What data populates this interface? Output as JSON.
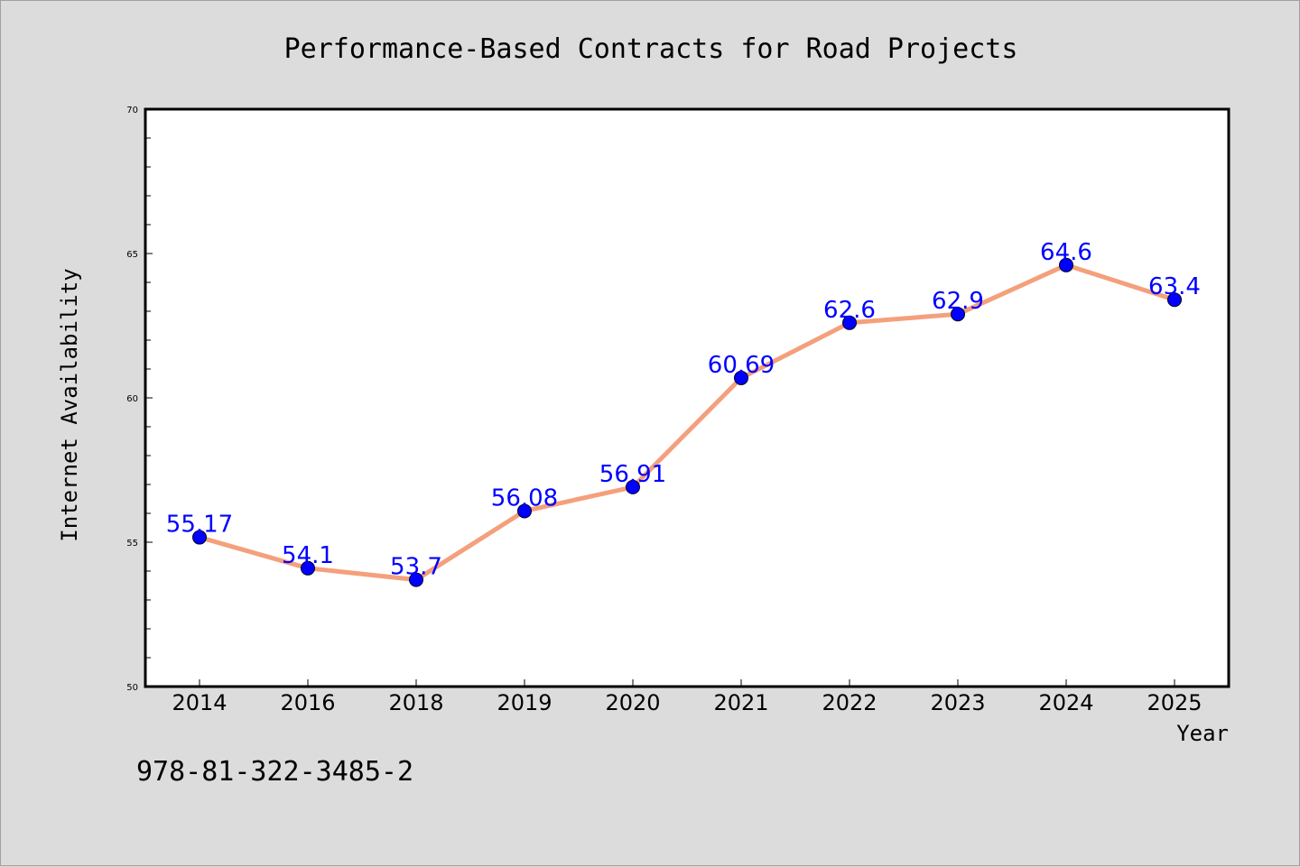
{
  "chart_data": {
    "type": "line",
    "title": "Performance-Based Contracts for Road Projects",
    "xlabel": "Year",
    "ylabel": "Internet Availability",
    "categories": [
      "2014",
      "2016",
      "2018",
      "2019",
      "2020",
      "2021",
      "2022",
      "2023",
      "2024",
      "2025"
    ],
    "series": [
      {
        "values": [
          55.17,
          54.1,
          53.7,
          56.08,
          56.91,
          60.69,
          62.6,
          62.9,
          64.6,
          63.4
        ],
        "line_color": "#f4a07c",
        "marker_color": "#0000ff"
      }
    ],
    "data_labels": [
      "55.17",
      "54.1",
      "53.7",
      "56.08",
      "56.91",
      "60.69",
      "62.6",
      "62.9",
      "64.6",
      "63.4"
    ],
    "ylim": [
      50,
      70
    ],
    "yticks": [
      "50",
      "55",
      "60",
      "65",
      "70"
    ],
    "grid": false,
    "legend": "none"
  },
  "footer": {
    "isbn": "978-81-322-3485-2"
  }
}
